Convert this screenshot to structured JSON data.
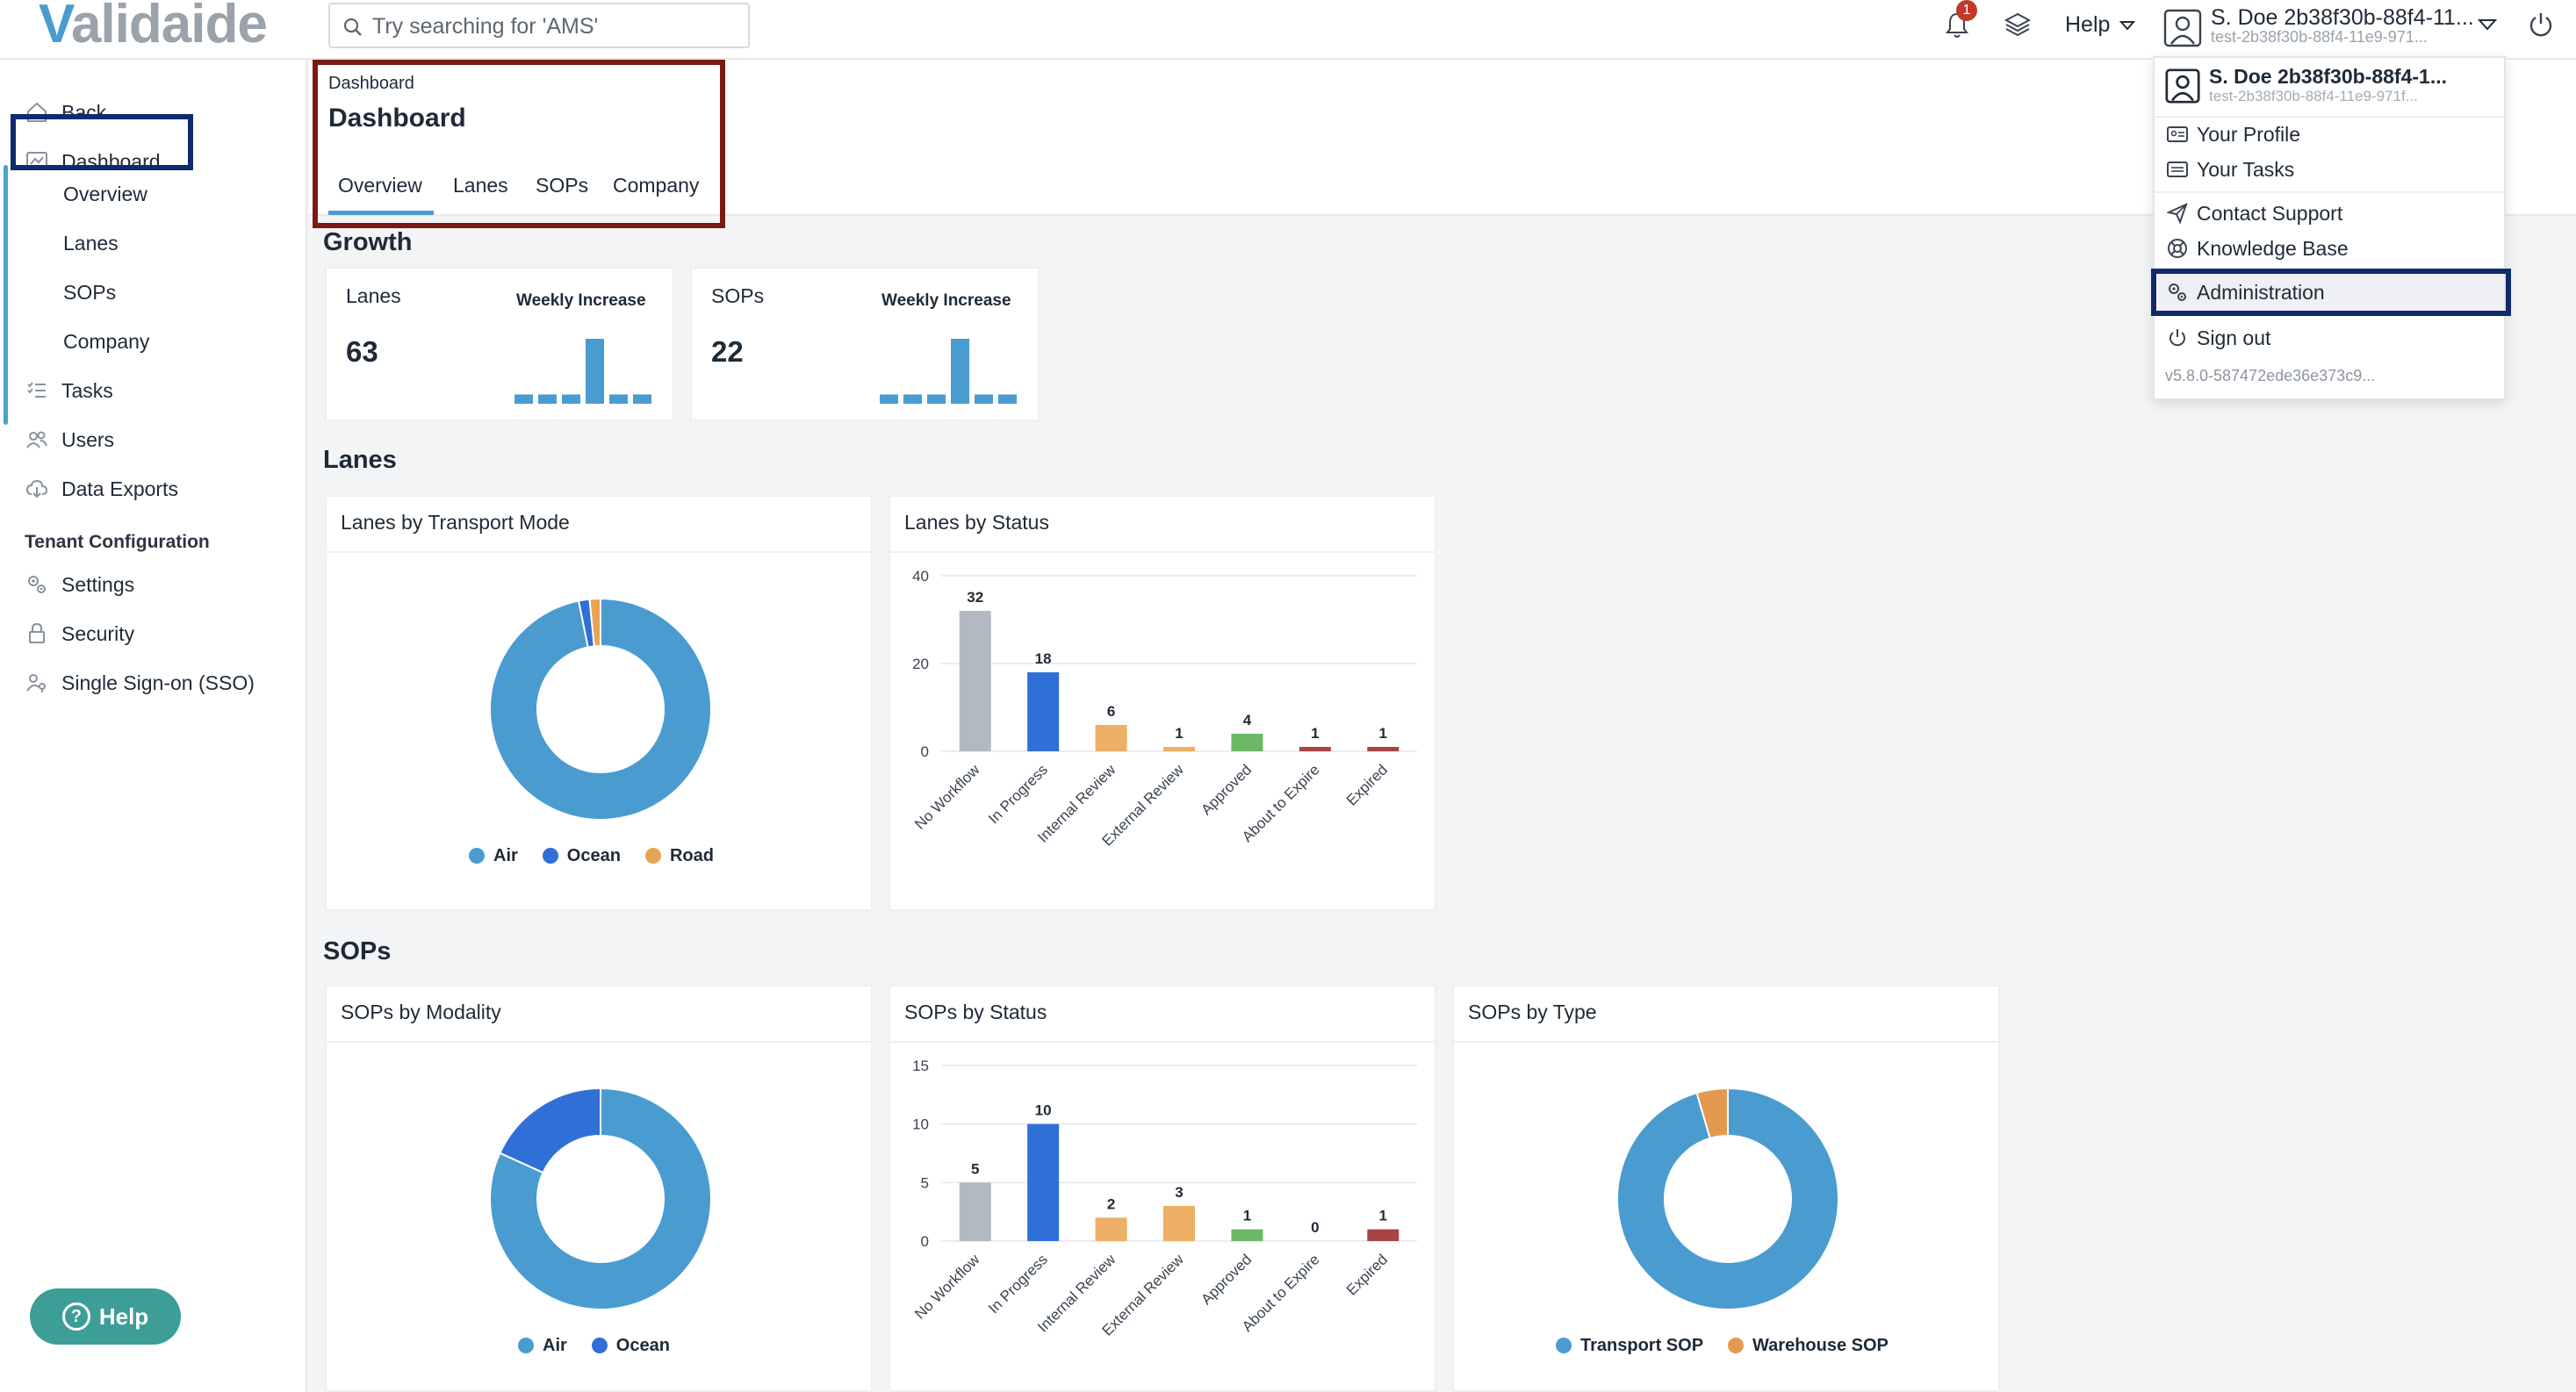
{
  "brand": {
    "logo_first": "V",
    "logo_rest": "alidaide"
  },
  "search": {
    "placeholder": "Try searching for 'AMS'"
  },
  "topbar": {
    "notification_count": "1",
    "help_label": "Help",
    "user_name": "S. Doe 2b38f30b-88f4-11...",
    "user_sub": "test-2b38f30b-88f4-11e9-971..."
  },
  "sidebar": {
    "back": "Back",
    "dashboard": "Dashboard",
    "sub_items": [
      "Overview",
      "Lanes",
      "SOPs",
      "Company"
    ],
    "tasks": "Tasks",
    "users": "Users",
    "data_exports": "Data Exports",
    "section": "Tenant Configuration",
    "settings": "Settings",
    "security": "Security",
    "sso": "Single Sign-on (SSO)",
    "help_button": "Help"
  },
  "header": {
    "breadcrumb": "Dashboard",
    "title": "Dashboard",
    "tabs": [
      "Overview",
      "Lanes",
      "SOPs",
      "Company"
    ],
    "active_tab": "Overview"
  },
  "growth": {
    "title": "Growth",
    "cards": [
      {
        "label": "Lanes",
        "value": "63",
        "weekly": "Weekly Increase"
      },
      {
        "label": "SOPs",
        "value": "22",
        "weekly": "Weekly Increase"
      }
    ]
  },
  "lanes_section": {
    "title": "Lanes"
  },
  "sops_section": {
    "title": "SOPs"
  },
  "dropdown": {
    "user_name": "S. Doe 2b38f30b-88f4-1...",
    "user_sub": "test-2b38f30b-88f4-11e9-971f...",
    "your_profile": "Your Profile",
    "your_tasks": "Your Tasks",
    "contact_support": "Contact Support",
    "knowledge_base": "Knowledge Base",
    "administration": "Administration",
    "sign_out": "Sign out",
    "version": "v5.8.0-587472ede36e373c9..."
  },
  "colors": {
    "air": "#4a9cd0",
    "ocean": "#2f6fd6",
    "road": "#e8a455",
    "no_workflow": "#b3b9c0",
    "in_progress": "#2f6fd6",
    "review": "#eeb066",
    "approved": "#6cb865",
    "expire": "#a94444",
    "transport_sop": "#4a9cd0",
    "warehouse_sop": "#e39a4e"
  },
  "chart_data": [
    {
      "id": "growth-lanes",
      "type": "bar",
      "title": "Weekly Increase",
      "values": [
        1,
        1,
        1,
        7,
        1,
        1
      ],
      "ylim": [
        0,
        7
      ]
    },
    {
      "id": "growth-sops",
      "type": "bar",
      "title": "Weekly Increase",
      "values": [
        1,
        1,
        1,
        7,
        1,
        1
      ],
      "ylim": [
        0,
        7
      ]
    },
    {
      "id": "lanes-by-transport",
      "type": "pie",
      "title": "Lanes by Transport Mode",
      "categories": [
        "Air",
        "Ocean",
        "Road"
      ],
      "values": [
        61,
        1,
        1
      ]
    },
    {
      "id": "lanes-by-status",
      "type": "bar",
      "title": "Lanes by Status",
      "categories": [
        "No Workflow",
        "In Progress",
        "Internal Review",
        "External Review",
        "Approved",
        "About to Expire",
        "Expired"
      ],
      "values": [
        32,
        18,
        6,
        1,
        4,
        1,
        1
      ],
      "yticks": [
        0,
        20,
        40
      ],
      "ylim": [
        0,
        40
      ],
      "grid": true
    },
    {
      "id": "sops-by-modality",
      "type": "pie",
      "title": "SOPs by Modality",
      "categories": [
        "Air",
        "Ocean"
      ],
      "values": [
        18,
        4
      ]
    },
    {
      "id": "sops-by-status",
      "type": "bar",
      "title": "SOPs by Status",
      "categories": [
        "No Workflow",
        "In Progress",
        "Internal Review",
        "External Review",
        "Approved",
        "About to Expire",
        "Expired"
      ],
      "values": [
        5,
        10,
        2,
        3,
        1,
        0,
        1
      ],
      "yticks": [
        0,
        5,
        10,
        15
      ],
      "ylim": [
        0,
        15
      ],
      "grid": true
    },
    {
      "id": "sops-by-type",
      "type": "pie",
      "title": "SOPs by Type",
      "categories": [
        "Transport SOP",
        "Warehouse SOP"
      ],
      "values": [
        21,
        1
      ]
    }
  ]
}
